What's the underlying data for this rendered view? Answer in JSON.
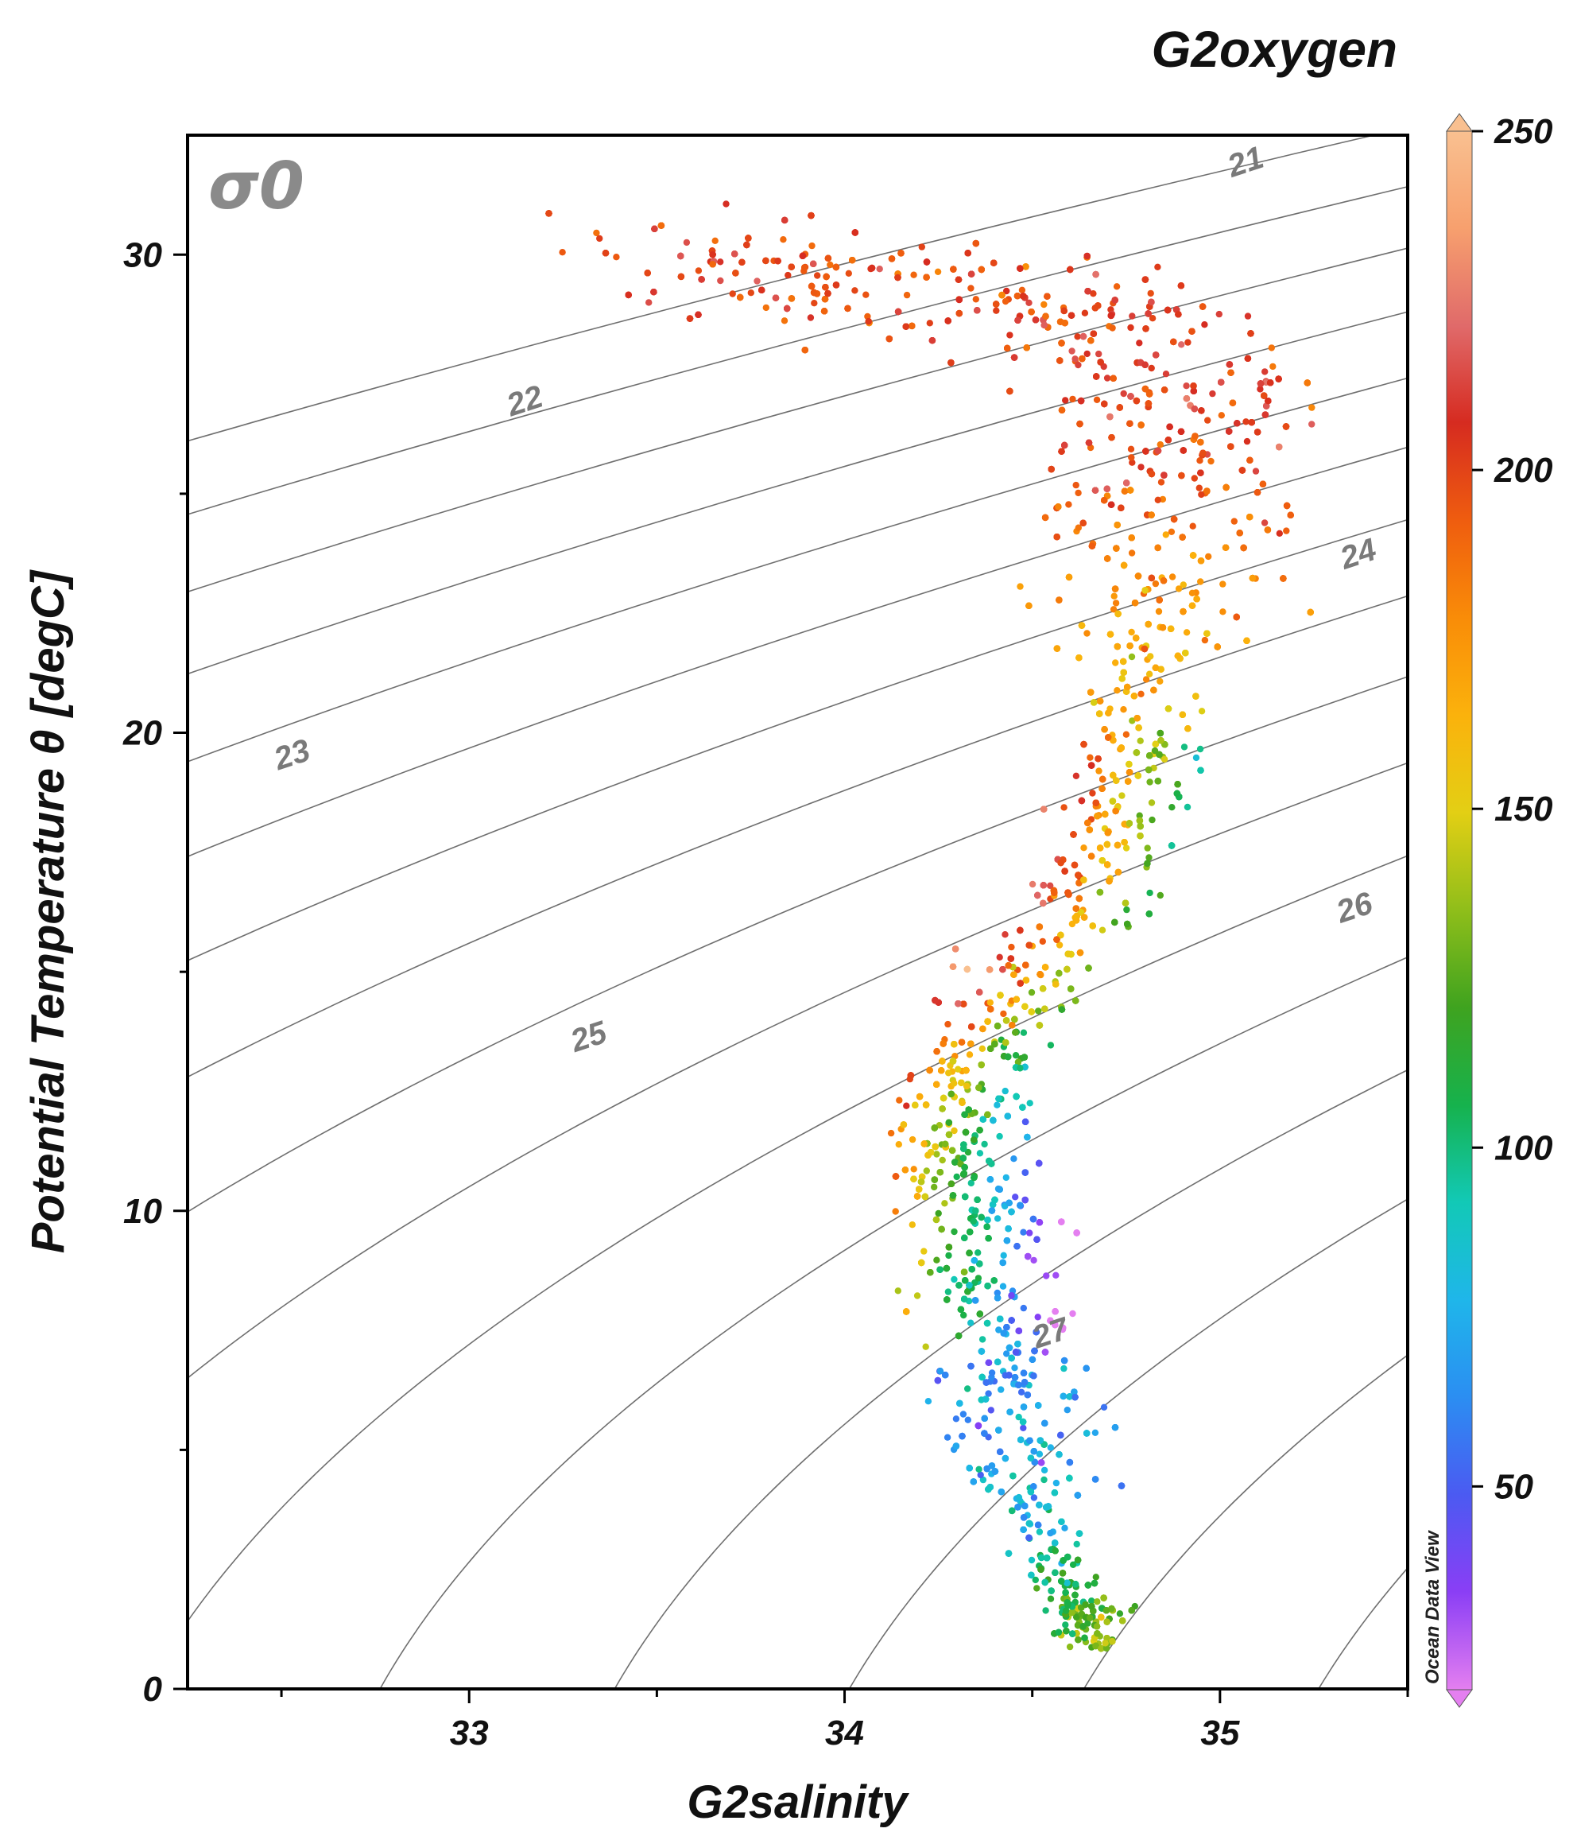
{
  "chart_data": {
    "type": "scatter",
    "title": "G2oxygen",
    "xlabel": "G2salinity",
    "ylabel": "Potential Temperature θ [degC]",
    "xlim": [
      32.25,
      35.5
    ],
    "ylim": [
      0,
      32.5
    ],
    "x_ticks": [
      33,
      34,
      35
    ],
    "y_ticks": [
      0,
      10,
      20,
      30
    ],
    "grid": false,
    "sigma_label": "σ0",
    "contours": {
      "variable": "sigma0",
      "levels": [
        20.5,
        21,
        21.5,
        22,
        22.5,
        23,
        23.5,
        24,
        24.5,
        25,
        25.5,
        26,
        26.5,
        27,
        27.5,
        28
      ],
      "labels": [
        {
          "text": "21",
          "s": 35.07,
          "t": 31.9
        },
        {
          "text": "22",
          "s": 33.15,
          "t": 26.9
        },
        {
          "text": "23",
          "s": 32.53,
          "t": 19.5
        },
        {
          "text": "24",
          "s": 35.37,
          "t": 23.7
        },
        {
          "text": "25",
          "s": 33.32,
          "t": 13.6
        },
        {
          "text": "26",
          "s": 35.36,
          "t": 16.3
        },
        {
          "text": "27",
          "s": 34.55,
          "t": 7.4
        }
      ]
    },
    "colorbar": {
      "label": "G2oxygen",
      "min": 20,
      "max": 250,
      "ticks": [
        50,
        100,
        150,
        200,
        250
      ],
      "colors": [
        "#e47ff0",
        "#8a3ef5",
        "#4b5af2",
        "#2b8ef2",
        "#1fb6ea",
        "#12c9b6",
        "#16b24d",
        "#3fa31f",
        "#8fbe1a",
        "#e3cf14",
        "#fbb20c",
        "#f98c08",
        "#ef5d0f",
        "#d62b20",
        "#e06a6a",
        "#f7a06e",
        "#f9c090"
      ]
    },
    "series": [
      {
        "points_description": "Ocean station T-S scatter colored by dissolved oxygen",
        "trend": [
          {
            "s": 33.5,
            "t": 29.7,
            "oxygen": 200
          },
          {
            "s": 34.0,
            "t": 29.5,
            "oxygen": 200
          },
          {
            "s": 34.5,
            "t": 29.0,
            "oxygen": 198
          },
          {
            "s": 34.85,
            "t": 27.8,
            "oxygen": 208
          },
          {
            "s": 34.95,
            "t": 26.0,
            "oxygen": 205
          },
          {
            "s": 34.85,
            "t": 24.0,
            "oxygen": 185
          },
          {
            "s": 34.8,
            "t": 21.5,
            "oxygen": 165
          },
          {
            "s": 34.75,
            "t": 19.0,
            "oxygen": 160
          },
          {
            "s": 34.65,
            "t": 16.5,
            "oxygen": 170
          },
          {
            "s": 34.45,
            "t": 14.5,
            "oxygen": 165
          },
          {
            "s": 34.35,
            "t": 13.0,
            "oxygen": 140
          },
          {
            "s": 34.3,
            "t": 11.5,
            "oxygen": 120
          },
          {
            "s": 34.35,
            "t": 10.0,
            "oxygen": 100
          },
          {
            "s": 34.4,
            "t": 8.0,
            "oxygen": 85
          },
          {
            "s": 34.45,
            "t": 6.0,
            "oxygen": 75
          },
          {
            "s": 34.5,
            "t": 4.0,
            "oxygen": 85
          },
          {
            "s": 34.6,
            "t": 2.0,
            "oxygen": 110
          },
          {
            "s": 34.7,
            "t": 1.0,
            "oxygen": 140
          }
        ]
      }
    ]
  },
  "watermark": "Ocean Data View"
}
